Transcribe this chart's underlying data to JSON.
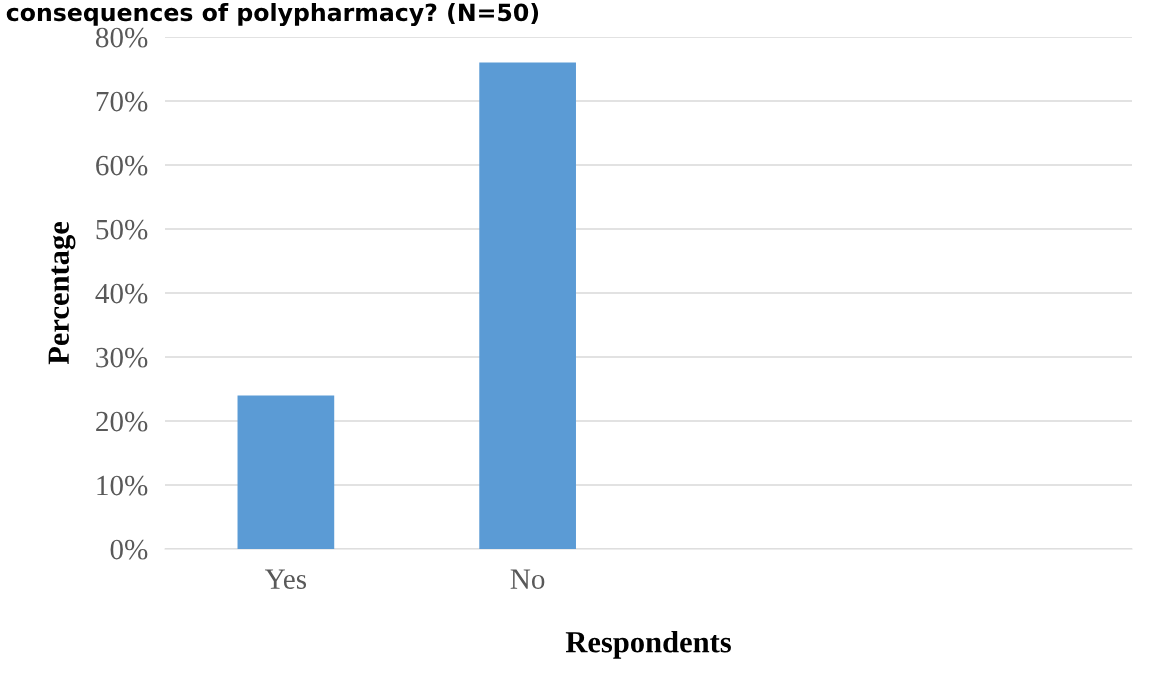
{
  "chart_data": {
    "type": "bar",
    "title": "consequences of polypharmacy? (N=50)",
    "xlabel": "Respondents",
    "ylabel": "Percentage",
    "categories": [
      "Yes",
      "No",
      null,
      null
    ],
    "values": [
      24,
      76,
      null,
      null
    ],
    "color": "#5b9bd5",
    "ylim": [
      0,
      80
    ],
    "yticks": [
      {
        "value": 0,
        "label": "0%"
      },
      {
        "value": 10,
        "label": "10%"
      },
      {
        "value": 20,
        "label": "20%"
      },
      {
        "value": 30,
        "label": "30%"
      },
      {
        "value": 40,
        "label": "40%"
      },
      {
        "value": 50,
        "label": "50%"
      },
      {
        "value": 60,
        "label": "60%"
      },
      {
        "value": 70,
        "label": "70%"
      },
      {
        "value": 80,
        "label": "80%"
      }
    ],
    "grid": "y"
  }
}
